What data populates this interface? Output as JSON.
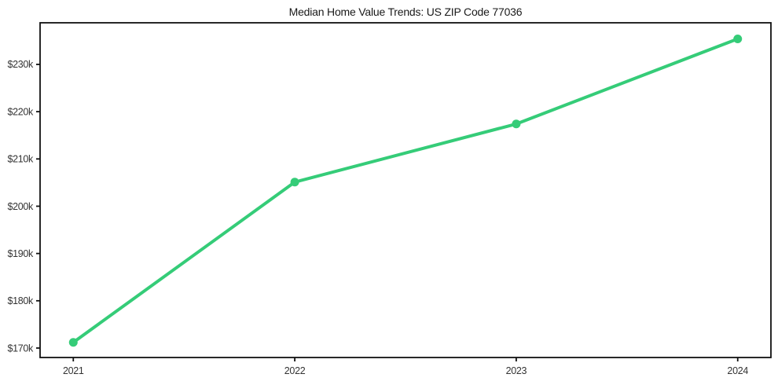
{
  "title": "Median Home Value Trends: US ZIP Code 77036",
  "colors": {
    "background": "#ffffff",
    "axis": "#111111",
    "tick_label": "#333333",
    "line": "#35cc78",
    "title_text": "#1a1a1a"
  },
  "chart_data": {
    "type": "line",
    "title": "Median Home Value Trends: US ZIP Code 77036",
    "xlabel": "",
    "ylabel": "",
    "x": [
      2021,
      2022,
      2023,
      2024
    ],
    "x_tick_labels": [
      "2021",
      "2022",
      "2023",
      "2024"
    ],
    "series": [
      {
        "name": "Median Home Value",
        "values": [
          171200,
          205100,
          217400,
          235400
        ]
      }
    ],
    "y_ticks": [
      170000,
      180000,
      190000,
      200000,
      210000,
      220000,
      230000
    ],
    "y_tick_labels": [
      "$170k",
      "$180k",
      "$190k",
      "$200k",
      "$210k",
      "$220k",
      "$230k"
    ],
    "xlim": [
      2020.85,
      2024.15
    ],
    "ylim": [
      168000,
      238800
    ],
    "grid": false,
    "legend": false,
    "marker": "circle",
    "line_width": 4,
    "marker_radius": 5.5
  }
}
